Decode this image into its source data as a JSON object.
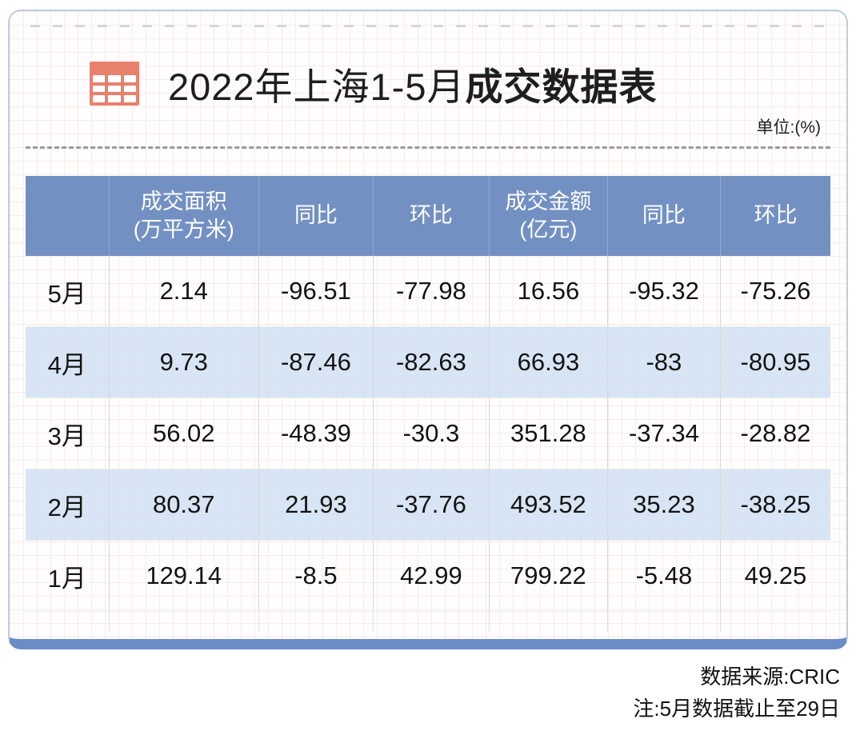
{
  "title": {
    "regular": "2022年上海1-5月",
    "bold": "成交数据表",
    "unit": "单位:(%)"
  },
  "table": {
    "header": [
      "",
      "成交面积\n(万平方米)",
      "同比",
      "环比",
      "成交金额\n(亿元)",
      "同比",
      "环比"
    ],
    "rows": [
      {
        "label": "5月",
        "values": [
          "2.14",
          "-96.51",
          "-77.98",
          "16.56",
          "-95.32",
          "-75.26"
        ]
      },
      {
        "label": "4月",
        "values": [
          "9.73",
          "-87.46",
          "-82.63",
          "66.93",
          "-83",
          "-80.95"
        ]
      },
      {
        "label": "3月",
        "values": [
          "56.02",
          "-48.39",
          "-30.3",
          "351.28",
          "-37.34",
          "-28.82"
        ]
      },
      {
        "label": "2月",
        "values": [
          "80.37",
          "21.93",
          "-37.76",
          "493.52",
          "35.23",
          "-38.25"
        ]
      },
      {
        "label": "1月",
        "values": [
          "129.14",
          "-8.5",
          "42.99",
          "799.22",
          "-5.48",
          "49.25"
        ]
      }
    ]
  },
  "footer": {
    "source": "数据来源:CRIC",
    "note": "注:5月数据截止至29日"
  },
  "colors": {
    "header_blue": "#7390c3",
    "row_alt_blue": "#dbe7f4",
    "bottom_bar_blue": "#6c8cc8",
    "card_border": "#bccde2",
    "icon_salmon": "#e8816c"
  },
  "chart_data": {
    "type": "table",
    "title": "2022年上海1-5月成交数据表",
    "unit": "单位:(%)",
    "columns": [
      "",
      "成交面积(万平方米)",
      "同比",
      "环比",
      "成交金额(亿元)",
      "同比",
      "环比"
    ],
    "rows": [
      [
        "5月",
        2.14,
        -96.51,
        -77.98,
        16.56,
        -95.32,
        -75.26
      ],
      [
        "4月",
        9.73,
        -87.46,
        -82.63,
        66.93,
        -83,
        -80.95
      ],
      [
        "3月",
        56.02,
        -48.39,
        -30.3,
        351.28,
        -37.34,
        -28.82
      ],
      [
        "2月",
        80.37,
        21.93,
        -37.76,
        493.52,
        35.23,
        -38.25
      ],
      [
        "1月",
        129.14,
        -8.5,
        42.99,
        799.22,
        -5.48,
        49.25
      ]
    ],
    "source": "数据来源:CRIC",
    "note": "注:5月数据截止至29日"
  }
}
